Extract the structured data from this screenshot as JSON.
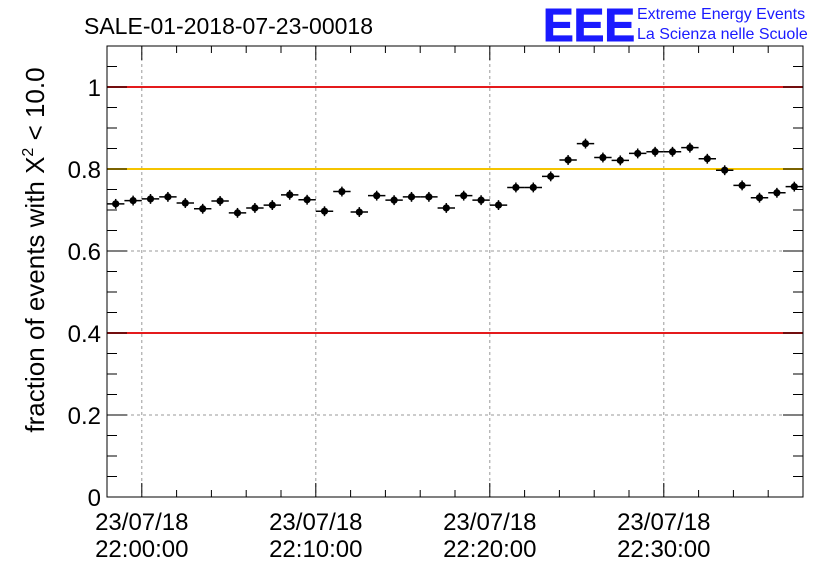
{
  "chart_data": {
    "type": "scatter",
    "title": "SALE-01-2018-07-23-00018",
    "ylabel_prefix": "fraction of events with ",
    "ylabel_symbol": "Χ",
    "ylabel_exponent": "2",
    "ylabel_suffix": " < 10.0",
    "xlabel": "",
    "ylim": [
      0,
      1.1
    ],
    "x_unit": "minutes after 21:58:00",
    "xlim": [
      0,
      40
    ],
    "grid": true,
    "y_ticks": [
      {
        "value": 0,
        "label": "0"
      },
      {
        "value": 0.2,
        "label": "0.2"
      },
      {
        "value": 0.4,
        "label": "0.4"
      },
      {
        "value": 0.6,
        "label": "0.6"
      },
      {
        "value": 0.8,
        "label": "0.8"
      },
      {
        "value": 1,
        "label": "1"
      }
    ],
    "x_ticks": [
      {
        "value": 2,
        "date": "23/07/18",
        "time": "22:00:00"
      },
      {
        "value": 12,
        "date": "23/07/18",
        "time": "22:10:00"
      },
      {
        "value": 22,
        "date": "23/07/18",
        "time": "22:20:00"
      },
      {
        "value": 32,
        "date": "23/07/18",
        "time": "22:30:00"
      }
    ],
    "reference_lines": [
      {
        "y": 1.0,
        "color": "#e41a1c"
      },
      {
        "y": 0.8,
        "color": "#f5c400"
      },
      {
        "y": 0.4,
        "color": "#e41a1c"
      }
    ],
    "series": [
      {
        "x_half_width": 0.5,
        "y_error": 0.012,
        "color": "#000000",
        "points": [
          {
            "x": 0.5,
            "y": 0.715
          },
          {
            "x": 1.5,
            "y": 0.723
          },
          {
            "x": 2.5,
            "y": 0.727
          },
          {
            "x": 3.5,
            "y": 0.732
          },
          {
            "x": 4.5,
            "y": 0.717
          },
          {
            "x": 5.5,
            "y": 0.703
          },
          {
            "x": 6.5,
            "y": 0.722
          },
          {
            "x": 7.5,
            "y": 0.693
          },
          {
            "x": 8.5,
            "y": 0.705
          },
          {
            "x": 9.5,
            "y": 0.712
          },
          {
            "x": 10.5,
            "y": 0.737
          },
          {
            "x": 11.5,
            "y": 0.725
          },
          {
            "x": 12.5,
            "y": 0.697
          },
          {
            "x": 13.5,
            "y": 0.745
          },
          {
            "x": 14.5,
            "y": 0.695
          },
          {
            "x": 15.5,
            "y": 0.735
          },
          {
            "x": 16.5,
            "y": 0.724
          },
          {
            "x": 17.5,
            "y": 0.732
          },
          {
            "x": 18.5,
            "y": 0.732
          },
          {
            "x": 19.5,
            "y": 0.705
          },
          {
            "x": 20.5,
            "y": 0.735
          },
          {
            "x": 21.5,
            "y": 0.724
          },
          {
            "x": 22.5,
            "y": 0.712
          },
          {
            "x": 23.5,
            "y": 0.755
          },
          {
            "x": 24.5,
            "y": 0.755
          },
          {
            "x": 25.5,
            "y": 0.782
          },
          {
            "x": 26.5,
            "y": 0.822
          },
          {
            "x": 27.5,
            "y": 0.862
          },
          {
            "x": 28.5,
            "y": 0.828
          },
          {
            "x": 29.5,
            "y": 0.821
          },
          {
            "x": 30.5,
            "y": 0.838
          },
          {
            "x": 31.5,
            "y": 0.842
          },
          {
            "x": 32.5,
            "y": 0.842
          },
          {
            "x": 33.5,
            "y": 0.852
          },
          {
            "x": 34.5,
            "y": 0.825
          },
          {
            "x": 35.5,
            "y": 0.797
          },
          {
            "x": 36.5,
            "y": 0.76
          },
          {
            "x": 37.5,
            "y": 0.73
          },
          {
            "x": 38.5,
            "y": 0.742
          },
          {
            "x": 39.5,
            "y": 0.757
          }
        ]
      }
    ]
  },
  "logo": {
    "letters": "EEE",
    "line1": "Extreme Energy Events",
    "line2": "La Scienza nelle Scuole",
    "color": "#1a1aff"
  }
}
